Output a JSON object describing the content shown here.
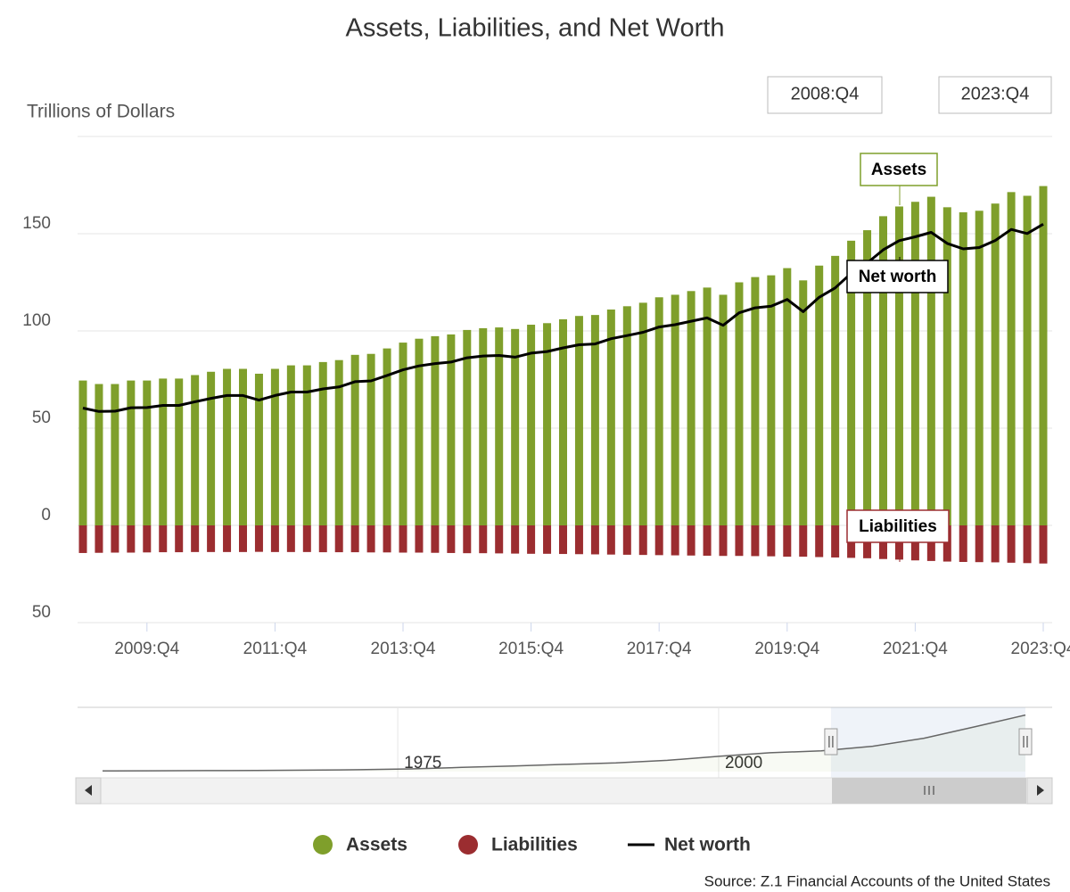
{
  "chart_data": {
    "type": "bar",
    "title": "Assets, Liabilities, and Net Worth",
    "y_label": "Trillions of Dollars",
    "range_start": "2008:Q4",
    "range_end": "2023:Q4",
    "source": "Source: Z.1 Financial Accounts of the United States",
    "categories": [
      "2008:Q4",
      "2009:Q1",
      "2009:Q2",
      "2009:Q3",
      "2009:Q4",
      "2010:Q1",
      "2010:Q2",
      "2010:Q3",
      "2010:Q4",
      "2011:Q1",
      "2011:Q2",
      "2011:Q3",
      "2011:Q4",
      "2012:Q1",
      "2012:Q2",
      "2012:Q3",
      "2012:Q4",
      "2013:Q1",
      "2013:Q2",
      "2013:Q3",
      "2013:Q4",
      "2014:Q1",
      "2014:Q2",
      "2014:Q3",
      "2014:Q4",
      "2015:Q1",
      "2015:Q2",
      "2015:Q3",
      "2015:Q4",
      "2016:Q1",
      "2016:Q2",
      "2016:Q3",
      "2016:Q4",
      "2017:Q1",
      "2017:Q2",
      "2017:Q3",
      "2017:Q4",
      "2018:Q1",
      "2018:Q2",
      "2018:Q3",
      "2018:Q4",
      "2019:Q1",
      "2019:Q2",
      "2019:Q3",
      "2019:Q4",
      "2020:Q1",
      "2020:Q2",
      "2020:Q3",
      "2020:Q4",
      "2021:Q1",
      "2021:Q2",
      "2021:Q3",
      "2021:Q4",
      "2022:Q1",
      "2022:Q2",
      "2022:Q3",
      "2022:Q4",
      "2023:Q1",
      "2023:Q2",
      "2023:Q3",
      "2023:Q4"
    ],
    "xticks": [
      "2009:Q4",
      "2011:Q4",
      "2013:Q4",
      "2015:Q4",
      "2017:Q4",
      "2019:Q4",
      "2021:Q4",
      "2023:Q4"
    ],
    "series": [
      {
        "name": "Assets",
        "color": "#7f9f2b",
        "type": "bar",
        "values": [
          74.5,
          72.7,
          72.7,
          74.5,
          74.5,
          75.5,
          75.5,
          77.3,
          79,
          80.5,
          80.5,
          78,
          80.5,
          82.3,
          82.3,
          84,
          85,
          87.7,
          88.2,
          91,
          94,
          96,
          97.3,
          98.2,
          100.5,
          101.4,
          101.8,
          101,
          103.2,
          104,
          106,
          107.7,
          108.2,
          111,
          112.7,
          114.5,
          117.3,
          118.6,
          120.5,
          122.3,
          118.6,
          125,
          127.7,
          128.6,
          132.3,
          126,
          133.6,
          138.6,
          146.4,
          151.8,
          159,
          164,
          166.4,
          169,
          163.6,
          161,
          161.8,
          165.5,
          171.4,
          169.5,
          174.5
        ]
      },
      {
        "name": "Liabilities",
        "color": "#9b2d30",
        "type": "bar",
        "values": [
          -14.2,
          -14.1,
          -14.0,
          -14.0,
          -13.9,
          -13.8,
          -13.8,
          -13.7,
          -13.7,
          -13.7,
          -13.7,
          -13.6,
          -13.7,
          -13.7,
          -13.7,
          -13.8,
          -13.8,
          -13.8,
          -13.9,
          -13.9,
          -14.0,
          -14.0,
          -14.1,
          -14.2,
          -14.3,
          -14.3,
          -14.4,
          -14.5,
          -14.6,
          -14.6,
          -14.7,
          -14.8,
          -14.9,
          -15.0,
          -15.1,
          -15.2,
          -15.3,
          -15.4,
          -15.5,
          -15.6,
          -15.7,
          -15.7,
          -15.8,
          -15.9,
          -16.1,
          -16.1,
          -16.3,
          -16.5,
          -16.7,
          -16.9,
          -17.3,
          -17.6,
          -18.0,
          -18.3,
          -18.6,
          -18.8,
          -18.9,
          -19.0,
          -19.2,
          -19.4,
          -19.6
        ]
      },
      {
        "name": "Net worth",
        "color": "#000000",
        "type": "line",
        "values": [
          60.3,
          58.6,
          58.7,
          60.5,
          60.6,
          61.7,
          61.7,
          63.6,
          65.3,
          66.8,
          66.8,
          64.4,
          66.8,
          68.6,
          68.6,
          70.2,
          71.2,
          73.9,
          74.3,
          77.1,
          80,
          82,
          83.2,
          84,
          86.2,
          87.1,
          87.4,
          86.5,
          88.6,
          89.4,
          91.3,
          92.9,
          93.3,
          96,
          97.6,
          99.3,
          102,
          103.2,
          105,
          106.7,
          102.9,
          109.3,
          111.9,
          112.7,
          116.2,
          109.9,
          117.3,
          122.1,
          129.7,
          134.9,
          141.7,
          146.4,
          148.4,
          150.7,
          145,
          142.2,
          142.9,
          146.5,
          152.2,
          150.1,
          154.9
        ]
      }
    ],
    "annotations": [
      "Assets",
      "Net worth",
      "Liabilities"
    ],
    "ylim": [
      -50,
      200
    ],
    "yticks": [
      {
        "value": -50,
        "label": "50"
      },
      0,
      50,
      100,
      150
    ],
    "grid": true,
    "navigator": {
      "x": [
        1952,
        1956,
        1960,
        1964,
        1968,
        1972,
        1976,
        1980,
        1984,
        1988,
        1992,
        1996,
        2000,
        2004,
        2008,
        2012,
        2016,
        2020,
        2023.9
      ],
      "values": [
        1.7,
        2.1,
        2.6,
        3.2,
        4.0,
        5.2,
        7.5,
        11.5,
        15.5,
        20,
        24,
        31,
        42,
        52,
        57,
        70,
        92,
        124,
        156
      ],
      "xlim": [
        1952,
        2023.9
      ],
      "ylim": [
        0,
        160
      ],
      "xticks": [
        1975,
        2000
      ],
      "selection": [
        2008.75,
        2023.9
      ]
    }
  }
}
